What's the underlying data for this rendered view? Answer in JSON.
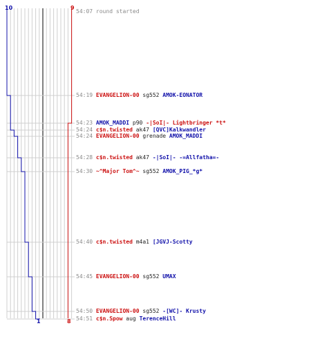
{
  "scores": {
    "blue_top": "10",
    "red_top": "9",
    "blue_bottom": "1",
    "red_bottom": "8"
  },
  "colors": {
    "blue": "#1111aa",
    "red": "#cc1111",
    "grid": "#cfcfcf",
    "divider": "#555555",
    "time": "#8a8a8a"
  },
  "events": [
    {
      "time": "54:07",
      "text": "round started",
      "killer": "",
      "killer_team": "",
      "weapon": "",
      "victim": "",
      "victim_team": ""
    },
    {
      "time": "54:19",
      "killer": "EVANGELION-00",
      "killer_team": "red",
      "weapon": "sg552",
      "victim": "AMOK-EONATOR",
      "victim_team": "blue"
    },
    {
      "time": "54:23",
      "killer": "AMOK_MADDI",
      "killer_team": "blue",
      "weapon": "p90",
      "victim": "-|SoI|- Lightbringer *t*",
      "victim_team": "red"
    },
    {
      "time": "54:24",
      "killer": "c$n.twisted",
      "killer_team": "red",
      "weapon": "ak47",
      "victim": "[QVC]Kalkwandler",
      "victim_team": "blue"
    },
    {
      "time": "54:24",
      "killer": "EVANGELION-00",
      "killer_team": "red",
      "weapon": "grenade",
      "victim": "AMOK_MADDI",
      "victim_team": "blue"
    },
    {
      "time": "54:28",
      "killer": "c$n.twisted",
      "killer_team": "red",
      "weapon": "ak47",
      "victim": "-|SoI|- -=Allfatha=-",
      "victim_team": "blue"
    },
    {
      "time": "54:30",
      "killer": "~^Major Tom^~",
      "killer_team": "red",
      "weapon": "sg552",
      "victim": "AMOK_PIG_*g*",
      "victim_team": "blue"
    },
    {
      "time": "54:40",
      "killer": "c$n.twisted",
      "killer_team": "red",
      "weapon": "m4a1",
      "victim": "[JGVJ-Scotty",
      "victim_team": "blue"
    },
    {
      "time": "54:45",
      "killer": "EVANGELION-00",
      "killer_team": "red",
      "weapon": "sg552",
      "victim": "UMAX",
      "victim_team": "blue"
    },
    {
      "time": "54:50",
      "killer": "EVANGELION-00",
      "killer_team": "red",
      "weapon": "sg552",
      "victim": "-[WC]- Krusty",
      "victim_team": "blue"
    },
    {
      "time": "54:51",
      "killer": "c$n.Spow",
      "killer_team": "red",
      "weapon": "aug",
      "victim": "TerenceHill",
      "victim_team": "blue"
    }
  ]
}
